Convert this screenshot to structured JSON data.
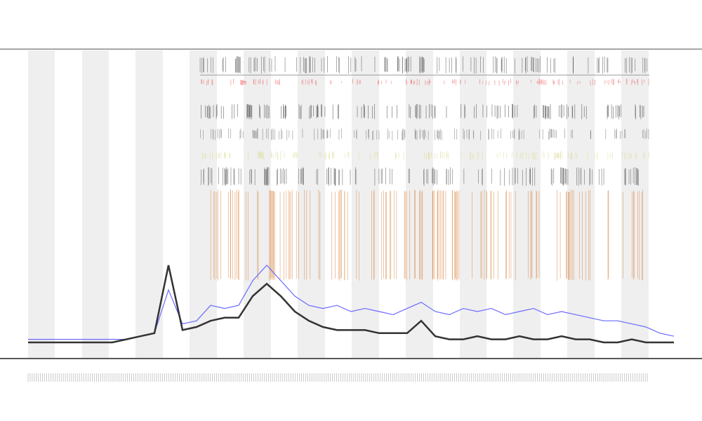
{
  "chart_data": {
    "type": "line",
    "x": [
      0,
      20,
      40,
      60,
      80,
      100,
      120,
      140,
      160,
      180,
      200,
      220,
      240,
      260,
      280,
      300,
      320,
      340,
      360,
      380,
      400,
      420,
      440,
      460,
      480,
      500,
      520,
      540,
      560,
      580,
      600,
      620,
      640,
      660,
      680,
      700,
      720,
      740,
      760,
      780,
      800,
      820,
      840,
      860,
      880,
      900,
      920
    ],
    "xlim": [
      0,
      920
    ],
    "ylim": [
      0,
      100
    ],
    "series": [
      {
        "color": "#6a6aff",
        "values": [
          6,
          6,
          6,
          6,
          6,
          6,
          6,
          6,
          7,
          8,
          22,
          11,
          12,
          17,
          16,
          17,
          25,
          30,
          25,
          20,
          17,
          16,
          17,
          15,
          16,
          15,
          14,
          16,
          18,
          15,
          14,
          16,
          15,
          16,
          14,
          15,
          16,
          14,
          15,
          14,
          13,
          12,
          12,
          11,
          10,
          8,
          7
        ]
      },
      {
        "color": "#333333",
        "values": [
          5,
          5,
          5,
          5,
          5,
          5,
          5,
          6,
          7,
          8,
          30,
          9,
          10,
          12,
          13,
          13,
          20,
          24,
          20,
          15,
          12,
          10,
          9,
          9,
          9,
          8,
          8,
          8,
          12,
          7,
          6,
          6,
          7,
          6,
          6,
          7,
          6,
          6,
          7,
          6,
          6,
          5,
          5,
          6,
          5,
          5,
          5
        ]
      }
    ]
  }
}
